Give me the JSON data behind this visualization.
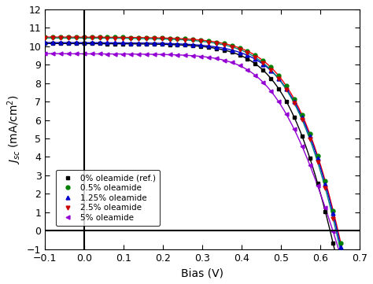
{
  "curves": [
    {
      "label": "0% oleamide (ref.)",
      "line_color": "#000000",
      "marker_color": "#000000",
      "marker": "s",
      "Jsc": 10.15,
      "Voc": 0.625,
      "n_id": 2.2,
      "Rs": 4.5
    },
    {
      "label": "0.5% oleamide",
      "line_color": "#ff0000",
      "marker_color": "#008000",
      "marker": "o",
      "Jsc": 10.5,
      "Voc": 0.645,
      "n_id": 2.0,
      "Rs": 3.5
    },
    {
      "label": "1.25% oleamide",
      "line_color": "#0000cc",
      "marker_color": "#0000cc",
      "marker": "^",
      "Jsc": 10.2,
      "Voc": 0.643,
      "n_id": 2.1,
      "Rs": 3.8
    },
    {
      "label": "2.5% oleamide",
      "line_color": "#008080",
      "marker_color": "#cc0000",
      "marker": "v",
      "Jsc": 10.45,
      "Voc": 0.64,
      "n_id": 2.0,
      "Rs": 3.6
    },
    {
      "label": "5% oleamide",
      "line_color": "#9400d3",
      "marker_color": "#9400d3",
      "marker": "<",
      "Jsc": 9.6,
      "Voc": 0.632,
      "n_id": 2.8,
      "Rs": 7.0
    }
  ],
  "xlim": [
    -0.1,
    0.7
  ],
  "ylim": [
    -1.0,
    12.0
  ],
  "xlabel": "Bias (V)",
  "ylabel": "$J_{sc}$ (mA/cm$^2$)",
  "xticks": [
    -0.1,
    0.0,
    0.1,
    0.2,
    0.3,
    0.4,
    0.5,
    0.6,
    0.7
  ],
  "yticks": [
    -1,
    0,
    1,
    2,
    3,
    4,
    5,
    6,
    7,
    8,
    9,
    10,
    11,
    12
  ],
  "vline_x": 0.0,
  "hline_y": 0.0
}
